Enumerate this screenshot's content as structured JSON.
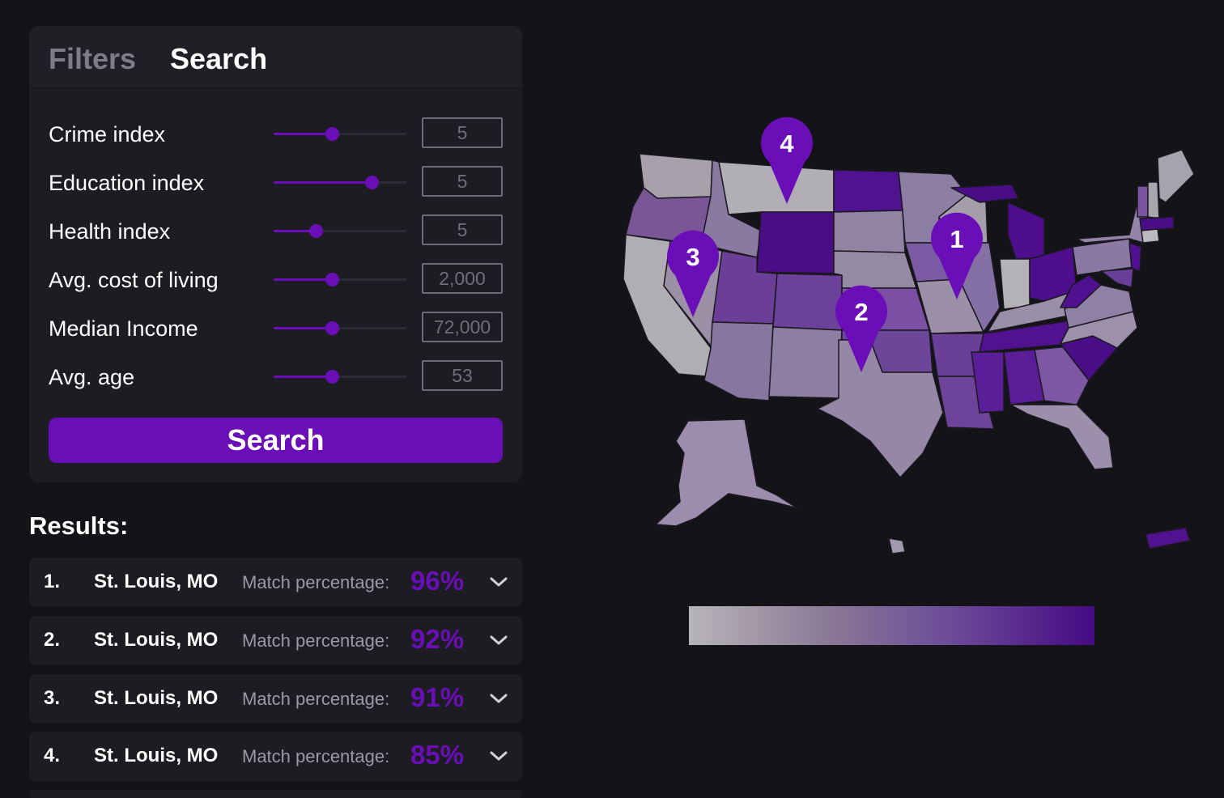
{
  "tabs": {
    "filters": "Filters",
    "search": "Search"
  },
  "filters": [
    {
      "label": "Crime index",
      "value": "5",
      "level": 0.44
    },
    {
      "label": "Education index",
      "value": "5",
      "level": 0.74
    },
    {
      "label": "Health index",
      "value": "5",
      "level": 0.32
    },
    {
      "label": "Avg. cost of living",
      "value": "2,000",
      "level": 0.44
    },
    {
      "label": "Median Income",
      "value": "72,000",
      "level": 0.44
    },
    {
      "label": "Avg. age",
      "value": "53",
      "level": 0.44
    }
  ],
  "search_button": "Search",
  "results_title": "Results:",
  "results": [
    {
      "rank": "1.",
      "city": "St. Louis, MO",
      "match_label": "Match percentage:",
      "match": "96%"
    },
    {
      "rank": "2.",
      "city": "St. Louis, MO",
      "match_label": "Match percentage:",
      "match": "92%"
    },
    {
      "rank": "3.",
      "city": "St. Louis, MO",
      "match_label": "Match percentage:",
      "match": "91%"
    },
    {
      "rank": "4.",
      "city": "St. Louis, MO",
      "match_label": "Match percentage:",
      "match": "85%"
    }
  ],
  "map_pins": [
    "1",
    "2",
    "3",
    "4"
  ],
  "colors": {
    "accent": "#6a0fb7",
    "background": "#131318",
    "panel": "#1c1c22",
    "legend_low": "#b7b5b8",
    "legend_high": "#450a82"
  },
  "icons": {
    "result_expand": "chevron-down-icon",
    "map_pin": "map-pin-icon"
  }
}
